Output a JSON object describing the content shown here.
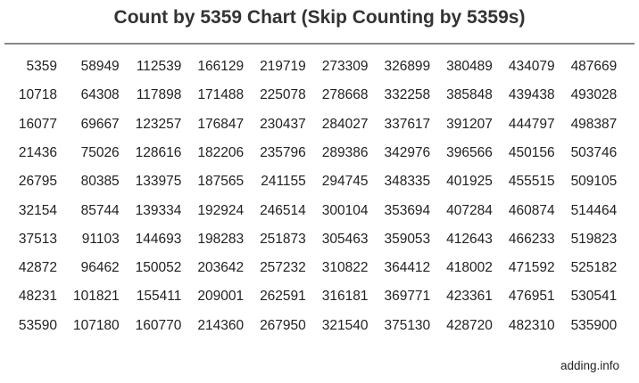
{
  "title": "Count by 5359 Chart (Skip Counting by 5359s)",
  "credit": "adding.info",
  "chart_data": {
    "type": "table",
    "title": "Count by 5359 Chart (Skip Counting by 5359s)",
    "rows": [
      [
        "5359",
        "58949",
        "112539",
        "166129",
        "219719",
        "273309",
        "326899",
        "380489",
        "434079",
        "487669"
      ],
      [
        "10718",
        "64308",
        "117898",
        "171488",
        "225078",
        "278668",
        "332258",
        "385848",
        "439438",
        "493028"
      ],
      [
        "16077",
        "69667",
        "123257",
        "176847",
        "230437",
        "284027",
        "337617",
        "391207",
        "444797",
        "498387"
      ],
      [
        "21436",
        "75026",
        "128616",
        "182206",
        "235796",
        "289386",
        "342976",
        "396566",
        "450156",
        "503746"
      ],
      [
        "26795",
        "80385",
        "133975",
        "187565",
        "241155",
        "294745",
        "348335",
        "401925",
        "455515",
        "509105"
      ],
      [
        "32154",
        "85744",
        "139334",
        "192924",
        "246514",
        "300104",
        "353694",
        "407284",
        "460874",
        "514464"
      ],
      [
        "37513",
        "91103",
        "144693",
        "198283",
        "251873",
        "305463",
        "359053",
        "412643",
        "466233",
        "519823"
      ],
      [
        "42872",
        "96462",
        "150052",
        "203642",
        "257232",
        "310822",
        "364412",
        "418002",
        "471592",
        "525182"
      ],
      [
        "48231",
        "101821",
        "155411",
        "209001",
        "262591",
        "316181",
        "369771",
        "423361",
        "476951",
        "530541"
      ],
      [
        "53590",
        "107180",
        "160770",
        "214360",
        "267950",
        "321540",
        "375130",
        "428720",
        "482310",
        "535900"
      ]
    ]
  }
}
